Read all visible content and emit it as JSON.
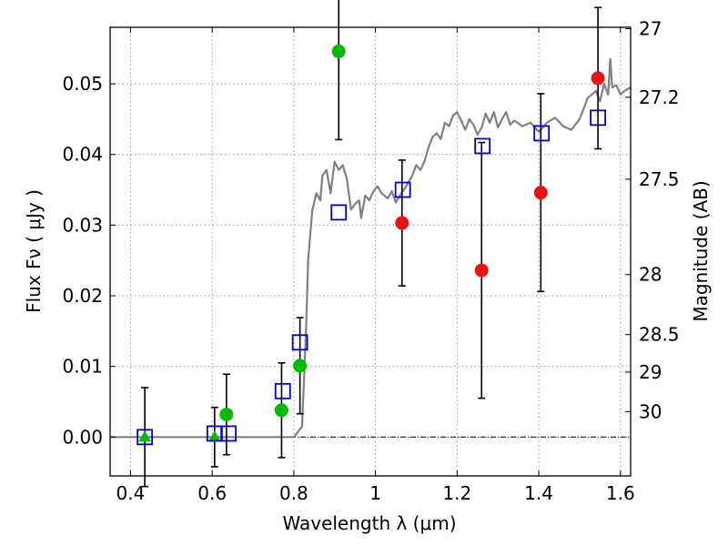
{
  "chart_data": {
    "type": "scatter",
    "xlabel": "Wavelength  λ (μm)",
    "ylabel": "Flux  Fν  ( μJy )",
    "y2label": "Magnitude (AB)",
    "xlim": [
      0.35,
      1.625
    ],
    "ylim": [
      -0.0055,
      0.058
    ],
    "grid": true,
    "x_ticks": [
      0.4,
      0.6,
      0.8,
      1.0,
      1.2,
      1.4,
      1.6
    ],
    "x_tick_labels": [
      "0.4",
      "0.6",
      "0.8",
      "1",
      "1.2",
      "1.4",
      "1.6"
    ],
    "y_ticks": [
      0.0,
      0.01,
      0.02,
      0.03,
      0.04,
      0.05
    ],
    "y_tick_labels": [
      "0.00",
      "0.01",
      "0.02",
      "0.03",
      "0.04",
      "0.05"
    ],
    "y2_ticks": [
      {
        "label": "27",
        "flux": 0.0578
      },
      {
        "label": "27.2",
        "flux": 0.0481
      },
      {
        "label": "27.5",
        "flux": 0.0365
      },
      {
        "label": "28",
        "flux": 0.023
      },
      {
        "label": "28.5",
        "flux": 0.0145
      },
      {
        "label": "29",
        "flux": 0.0092
      },
      {
        "label": "30",
        "flux": 0.0036
      }
    ],
    "colors": {
      "model": "#808080",
      "green": "#00bb00",
      "red": "#ee1111",
      "square": "#0000cc",
      "errorbar": "#000000",
      "zero_line": "#000000",
      "grid": "#999999"
    },
    "series": [
      {
        "marker": "line",
        "color": "#808080",
        "points": [
          [
            0.35,
            0.0
          ],
          [
            0.8,
            0.0
          ],
          [
            0.82,
            0.0015
          ],
          [
            0.83,
            0.015
          ],
          [
            0.835,
            0.025
          ],
          [
            0.845,
            0.032
          ],
          [
            0.855,
            0.0345
          ],
          [
            0.865,
            0.0335
          ],
          [
            0.87,
            0.037
          ],
          [
            0.88,
            0.0378
          ],
          [
            0.89,
            0.0345
          ],
          [
            0.9,
            0.039
          ],
          [
            0.91,
            0.0378
          ],
          [
            0.92,
            0.0385
          ],
          [
            0.93,
            0.0365
          ],
          [
            0.94,
            0.0322
          ],
          [
            0.95,
            0.033
          ],
          [
            0.96,
            0.0335
          ],
          [
            0.965,
            0.031
          ],
          [
            0.975,
            0.0342
          ],
          [
            0.985,
            0.0335
          ],
          [
            0.995,
            0.0348
          ],
          [
            1.005,
            0.0355
          ],
          [
            1.015,
            0.0345
          ],
          [
            1.03,
            0.0338
          ],
          [
            1.04,
            0.0348
          ],
          [
            1.05,
            0.0332
          ],
          [
            1.06,
            0.0342
          ],
          [
            1.075,
            0.0355
          ],
          [
            1.09,
            0.037
          ],
          [
            1.1,
            0.0385
          ],
          [
            1.11,
            0.0378
          ],
          [
            1.12,
            0.039
          ],
          [
            1.13,
            0.041
          ],
          [
            1.14,
            0.0425
          ],
          [
            1.15,
            0.043
          ],
          [
            1.16,
            0.0422
          ],
          [
            1.17,
            0.0445
          ],
          [
            1.18,
            0.044
          ],
          [
            1.19,
            0.0455
          ],
          [
            1.2,
            0.046
          ],
          [
            1.21,
            0.0448
          ],
          [
            1.22,
            0.0435
          ],
          [
            1.23,
            0.045
          ],
          [
            1.24,
            0.0442
          ],
          [
            1.25,
            0.0428
          ],
          [
            1.26,
            0.0438
          ],
          [
            1.27,
            0.0458
          ],
          [
            1.28,
            0.0445
          ],
          [
            1.29,
            0.046
          ],
          [
            1.3,
            0.0438
          ],
          [
            1.31,
            0.045
          ],
          [
            1.32,
            0.046
          ],
          [
            1.33,
            0.0442
          ],
          [
            1.34,
            0.0448
          ],
          [
            1.36,
            0.044
          ],
          [
            1.38,
            0.0445
          ],
          [
            1.4,
            0.0432
          ],
          [
            1.42,
            0.0445
          ],
          [
            1.44,
            0.0452
          ],
          [
            1.46,
            0.044
          ],
          [
            1.48,
            0.0435
          ],
          [
            1.5,
            0.045
          ],
          [
            1.52,
            0.048
          ],
          [
            1.54,
            0.049
          ],
          [
            1.55,
            0.0475
          ],
          [
            1.56,
            0.05
          ],
          [
            1.57,
            0.0485
          ],
          [
            1.575,
            0.0535
          ],
          [
            1.58,
            0.0495
          ],
          [
            1.59,
            0.0498
          ],
          [
            1.6,
            0.0485
          ],
          [
            1.61,
            0.049
          ],
          [
            1.625,
            0.0495
          ]
        ]
      },
      {
        "marker": "circle",
        "color": "#00bb00",
        "points": [
          {
            "x": 0.635,
            "y": 0.0032,
            "err": 0.0057
          },
          {
            "x": 0.77,
            "y": 0.0038,
            "err": 0.0067
          },
          {
            "x": 0.815,
            "y": 0.0101,
            "err": 0.0068
          },
          {
            "x": 0.91,
            "y": 0.0546,
            "err": 0.0125
          }
        ]
      },
      {
        "marker": "triangle",
        "color": "#00bb00",
        "points": [
          {
            "x": 0.435,
            "y": 0.0,
            "err": 0.007
          },
          {
            "x": 0.606,
            "y": 0.0,
            "err": 0.0042
          }
        ]
      },
      {
        "marker": "circle",
        "color": "#ee1111",
        "points": [
          {
            "x": 1.065,
            "y": 0.0303,
            "err": 0.0089
          },
          {
            "x": 1.26,
            "y": 0.0236,
            "err": 0.0181
          },
          {
            "x": 1.405,
            "y": 0.0346,
            "err": 0.014
          },
          {
            "x": 1.545,
            "y": 0.0508,
            "err": 0.01
          }
        ]
      },
      {
        "marker": "square",
        "color": "#0000cc",
        "points": [
          {
            "x": 0.435,
            "y": 0.0
          },
          {
            "x": 0.606,
            "y": 0.0005
          },
          {
            "x": 0.64,
            "y": 0.0005
          },
          {
            "x": 0.773,
            "y": 0.0065
          },
          {
            "x": 0.815,
            "y": 0.0134
          },
          {
            "x": 0.91,
            "y": 0.0318
          },
          {
            "x": 1.067,
            "y": 0.035
          },
          {
            "x": 1.262,
            "y": 0.0412
          },
          {
            "x": 1.407,
            "y": 0.043
          },
          {
            "x": 1.545,
            "y": 0.0452
          }
        ]
      }
    ]
  }
}
